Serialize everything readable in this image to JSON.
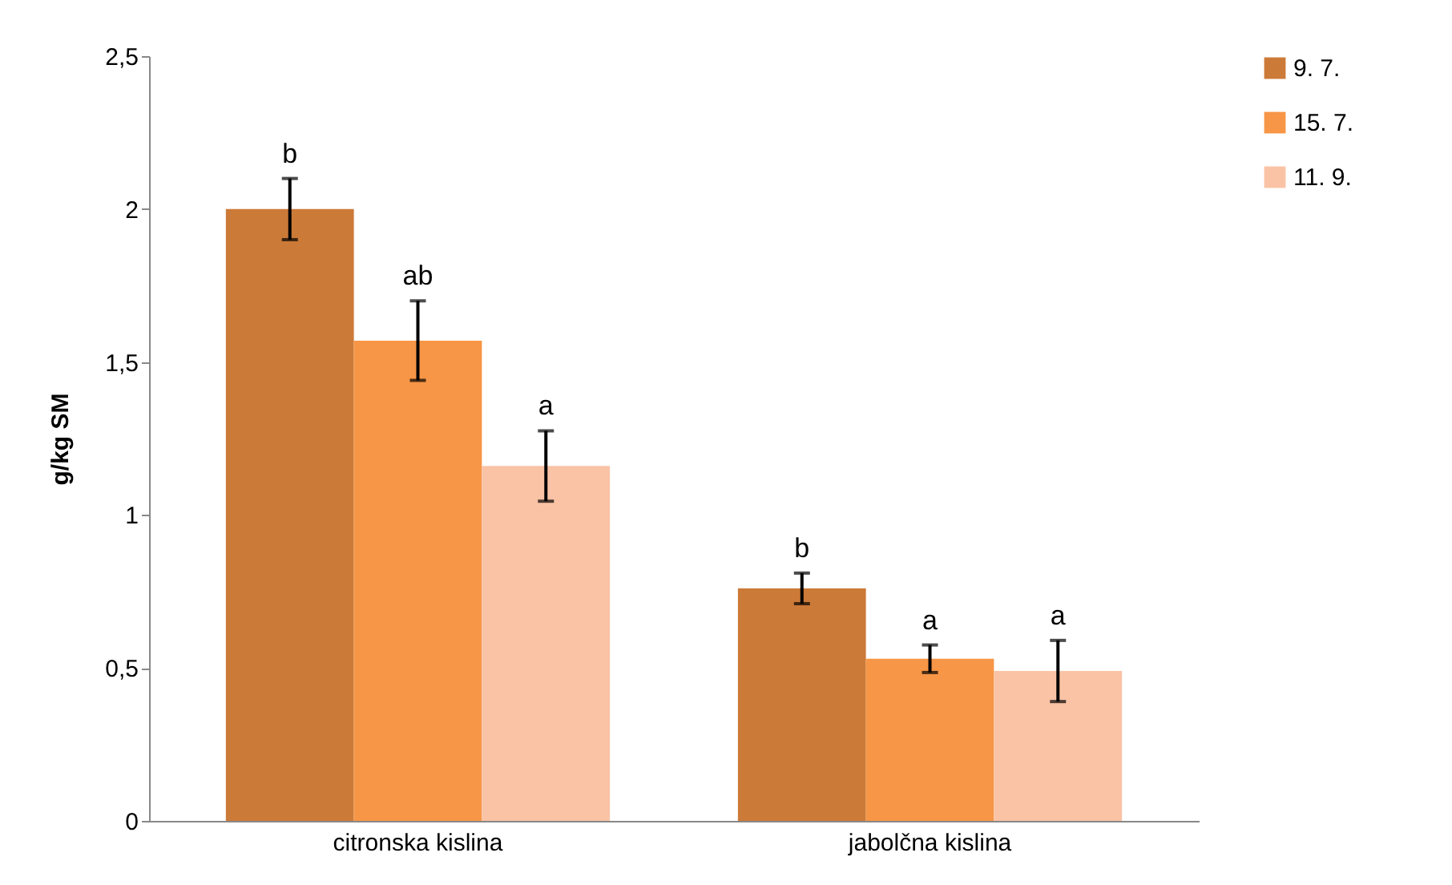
{
  "chart_data": {
    "type": "bar",
    "ylabel": "g/kg SM",
    "categories": [
      "citronska kislina",
      "jabolčna kislina"
    ],
    "series": [
      {
        "name": "9. 7.",
        "color": "#cc7a38",
        "values": [
          2.0,
          0.76
        ],
        "errors": [
          0.1,
          0.05
        ]
      },
      {
        "name": "15. 7.",
        "color": "#f79646",
        "values": [
          1.57,
          0.53
        ],
        "errors": [
          0.13,
          0.045
        ]
      },
      {
        "name": "11. 9.",
        "color": "#fac3a6",
        "values": [
          1.16,
          0.49
        ],
        "errors": [
          0.115,
          0.1
        ]
      }
    ],
    "ylim": [
      0,
      2.5
    ],
    "yticks": [
      0,
      {
        "value": 0.5,
        "label": "0,5"
      },
      1,
      {
        "value": 1.5,
        "label": "1,5"
      },
      2,
      {
        "value": 2.5,
        "label": "2,5"
      }
    ],
    "grid": false,
    "legend": "right",
    "annotations": [
      "b",
      "ab",
      "a",
      "b",
      "a",
      "a"
    ]
  }
}
